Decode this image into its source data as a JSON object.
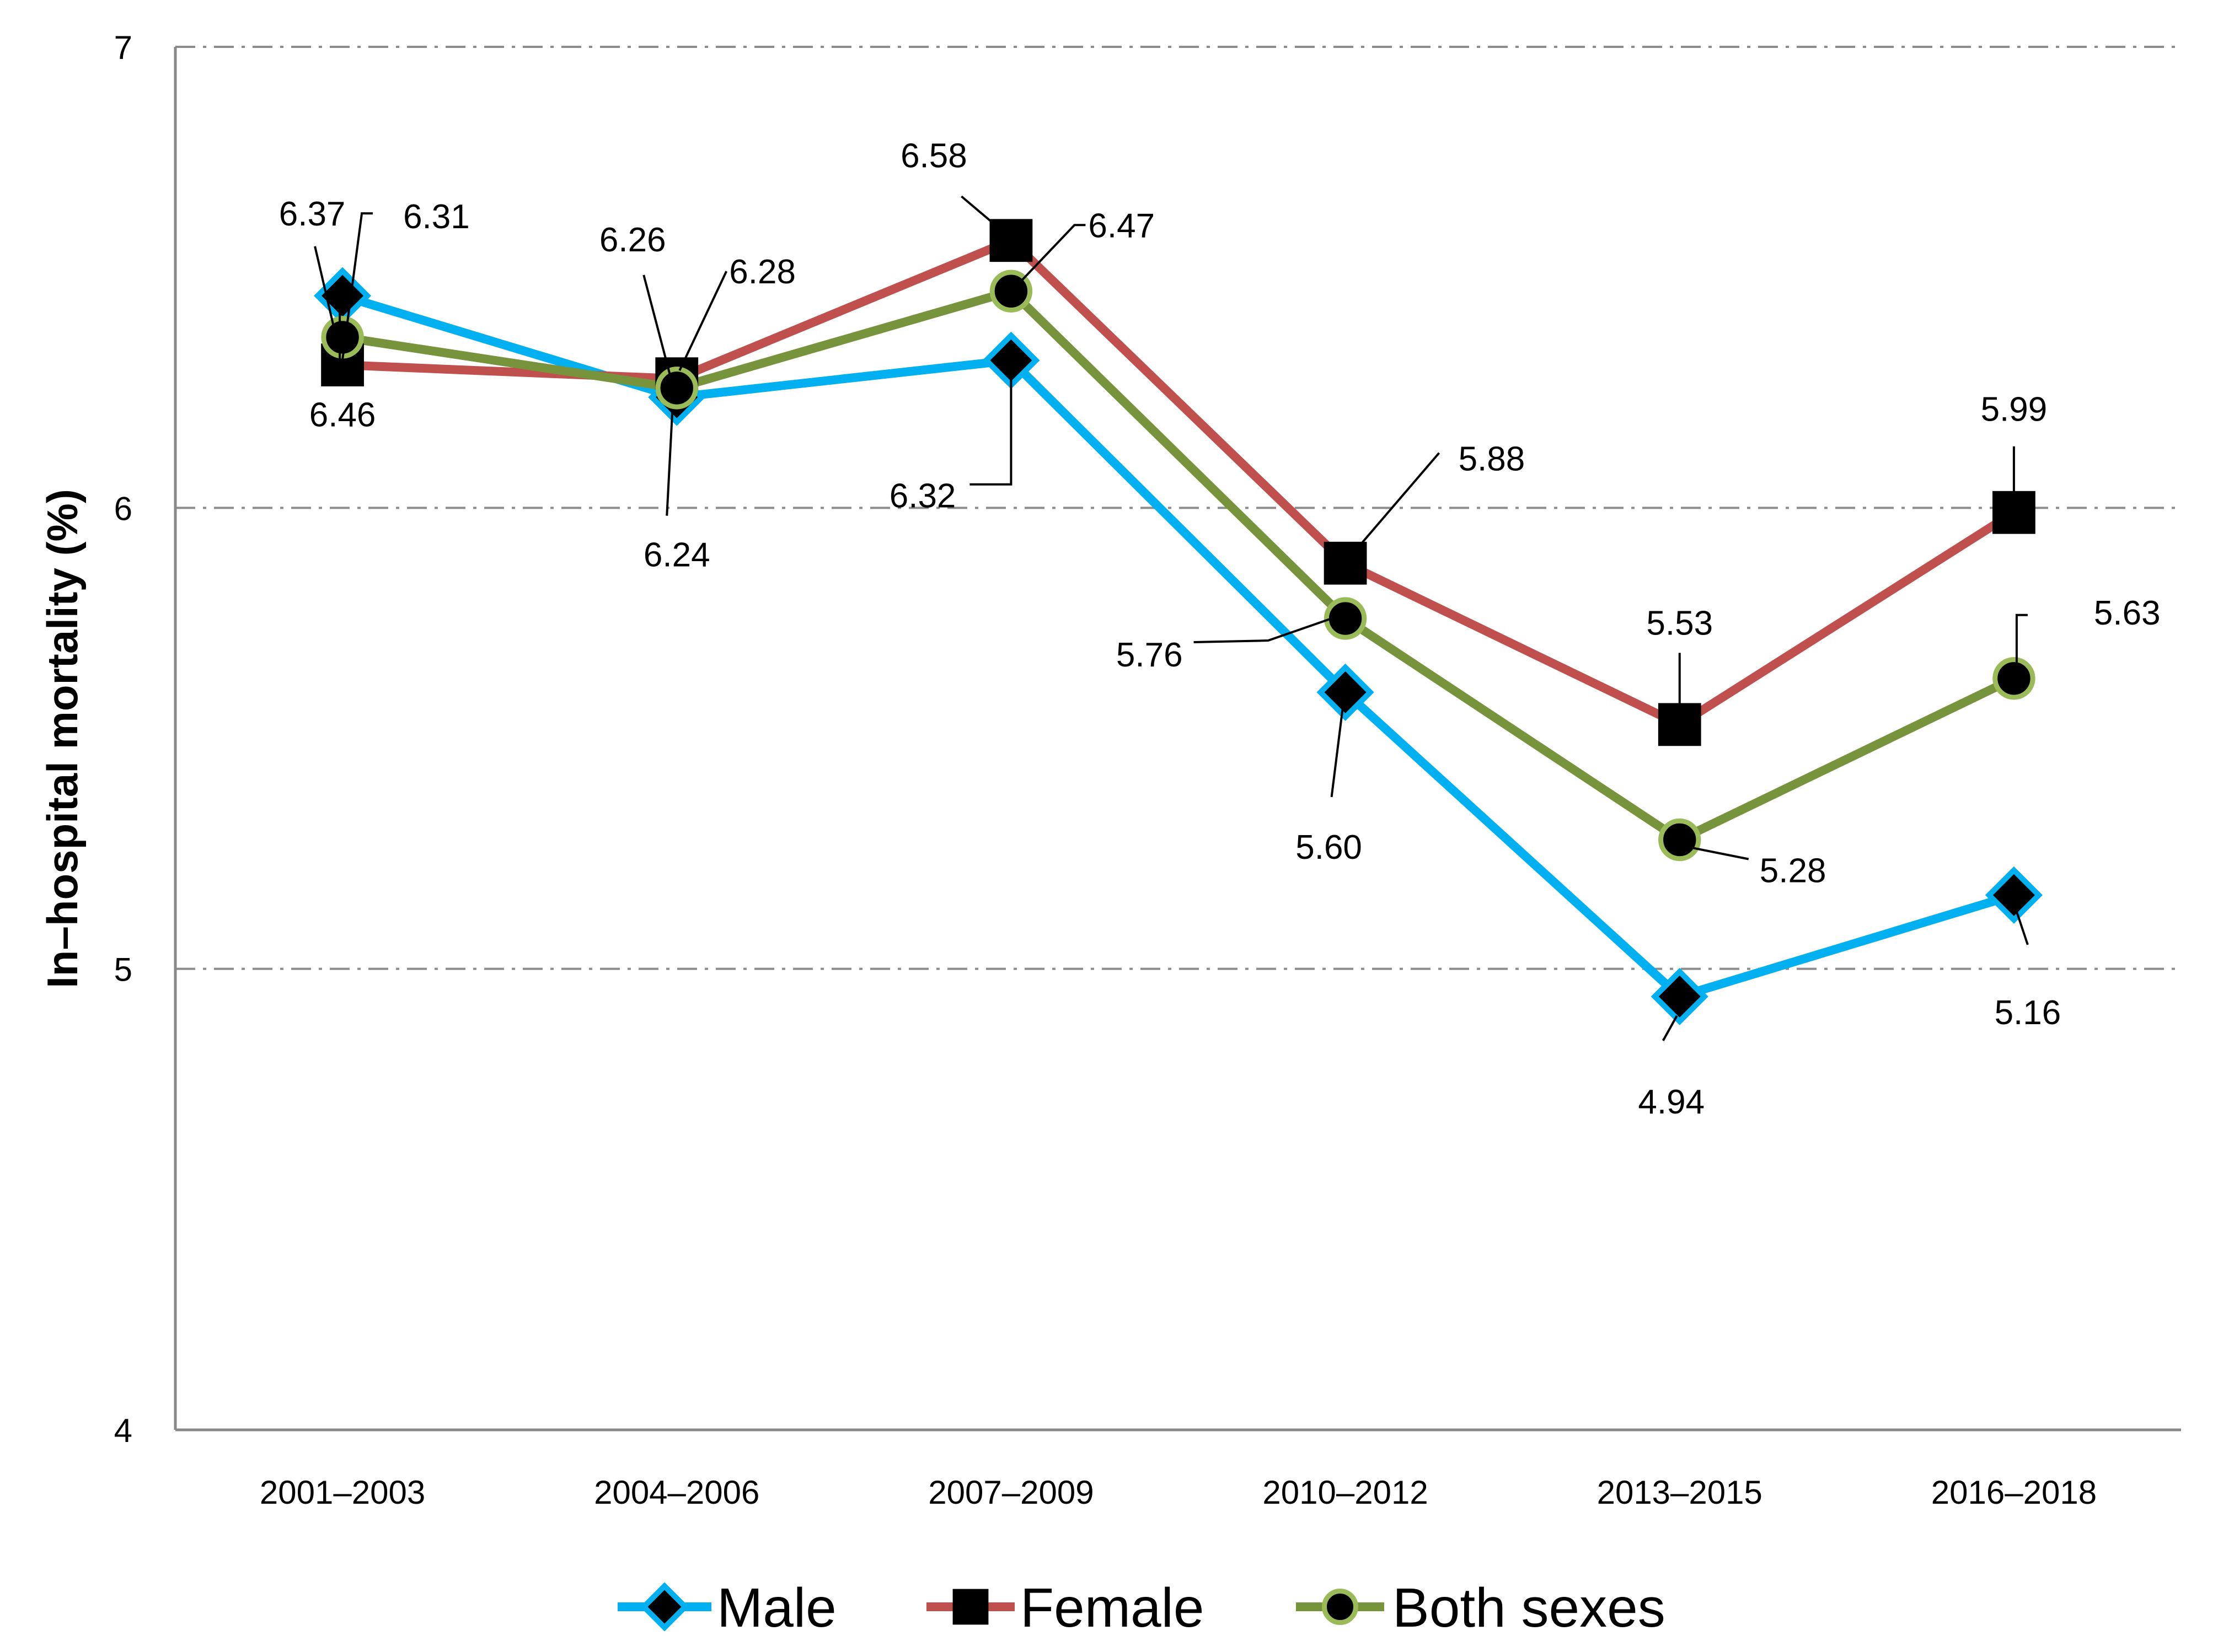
{
  "chart_data": {
    "type": "line",
    "title": "",
    "xlabel": "",
    "ylabel": "In–hospital mortality (%)",
    "ylim": [
      4,
      7
    ],
    "yticks": [
      4,
      5,
      6,
      7
    ],
    "grid": "horizontal dash-dot",
    "legend_position": "bottom",
    "categories": [
      "2001–2003",
      "2004–2006",
      "2007–2009",
      "2010–2012",
      "2013–2015",
      "2016–2018"
    ],
    "series": [
      {
        "name": "Male",
        "color": "#00B0F0",
        "marker": "diamond",
        "values": [
          6.46,
          6.24,
          6.32,
          5.6,
          4.94,
          5.16
        ]
      },
      {
        "name": "Female",
        "color": "#C0504D",
        "marker": "square",
        "values": [
          6.31,
          6.28,
          6.58,
          5.88,
          5.53,
          5.99
        ]
      },
      {
        "name": "Both sexes",
        "color": "#77933C",
        "marker": "circle",
        "values": [
          6.37,
          6.26,
          6.47,
          5.76,
          5.28,
          5.63
        ]
      }
    ],
    "data_labels": [
      {
        "series": 2,
        "index": 0,
        "text": "6.37"
      },
      {
        "series": 1,
        "index": 0,
        "text": "6.31"
      },
      {
        "series": 0,
        "index": 0,
        "text": "6.46"
      },
      {
        "series": 2,
        "index": 1,
        "text": "6.26"
      },
      {
        "series": 1,
        "index": 1,
        "text": "6.28"
      },
      {
        "series": 0,
        "index": 1,
        "text": "6.24"
      },
      {
        "series": 1,
        "index": 2,
        "text": "6.58"
      },
      {
        "series": 2,
        "index": 2,
        "text": "6.47"
      },
      {
        "series": 0,
        "index": 2,
        "text": "6.32"
      },
      {
        "series": 1,
        "index": 3,
        "text": "5.88"
      },
      {
        "series": 2,
        "index": 3,
        "text": "5.76"
      },
      {
        "series": 0,
        "index": 3,
        "text": "5.60"
      },
      {
        "series": 1,
        "index": 4,
        "text": "5.53"
      },
      {
        "series": 2,
        "index": 4,
        "text": "5.28"
      },
      {
        "series": 0,
        "index": 4,
        "text": "4.94"
      },
      {
        "series": 1,
        "index": 5,
        "text": "5.99"
      },
      {
        "series": 2,
        "index": 5,
        "text": "5.63"
      },
      {
        "series": 0,
        "index": 5,
        "text": "5.16"
      }
    ]
  }
}
